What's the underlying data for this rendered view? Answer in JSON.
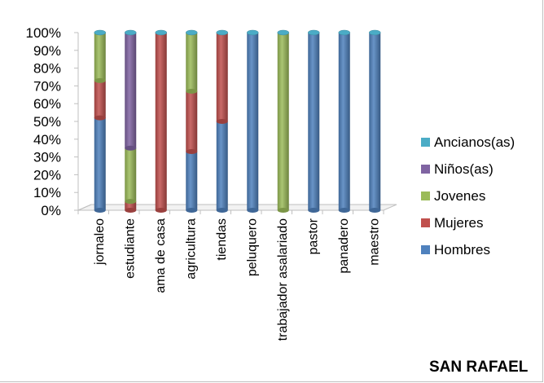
{
  "chart_data": {
    "type": "bar",
    "stacked": true,
    "percent_stacked": true,
    "three_d": true,
    "title": "SAN RAFAEL",
    "categories": [
      "jornaleo",
      "estudiante",
      "ama de casa",
      "agricultura",
      "tiendas",
      "peluquero",
      "trabajador asalariado",
      "pastor",
      "panadero",
      "maestro"
    ],
    "series": [
      {
        "name": "Hombres",
        "color": "#4f81bd",
        "values": [
          52,
          0,
          0,
          33,
          50,
          100,
          0,
          100,
          100,
          100
        ]
      },
      {
        "name": "Mujeres",
        "color": "#c0504d",
        "values": [
          21,
          5,
          100,
          34,
          50,
          0,
          0,
          0,
          0,
          0
        ]
      },
      {
        "name": "Jovenes",
        "color": "#9bbb59",
        "values": [
          27,
          30,
          0,
          33,
          0,
          0,
          100,
          0,
          0,
          0
        ]
      },
      {
        "name": "Niños(as)",
        "color": "#8064a2",
        "values": [
          0,
          65,
          0,
          0,
          0,
          0,
          0,
          0,
          0,
          0
        ]
      },
      {
        "name": "Ancianos(as)",
        "color": "#4bacc6",
        "values": [
          0,
          0,
          0,
          0,
          0,
          0,
          0,
          0,
          0,
          0
        ]
      }
    ],
    "legend_order": [
      "Ancianos(as)",
      "Niños(as)",
      "Jovenes",
      "Mujeres",
      "Hombres"
    ],
    "legend_position": "right",
    "y_ticks": [
      "0%",
      "10%",
      "20%",
      "30%",
      "40%",
      "50%",
      "60%",
      "70%",
      "80%",
      "90%",
      "100%"
    ],
    "ylim": [
      0,
      100
    ],
    "grid": false
  }
}
